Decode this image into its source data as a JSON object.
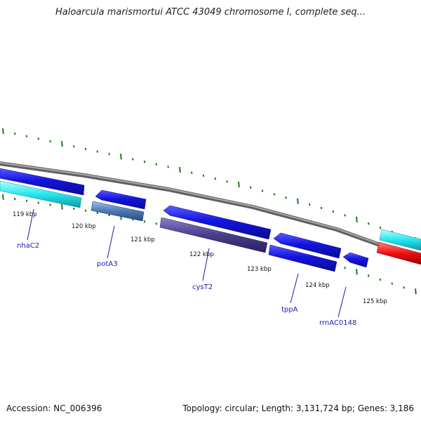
{
  "title": "Haloarcula marismortui ATCC 43049 chromosome I, complete seq...",
  "tick_labels": [
    "119 kbp",
    "120 kbp",
    "121 kbp",
    "122 kbp",
    "123 kbp",
    "124 kbp",
    "125 kbp"
  ],
  "gene_labels": [
    "nhaC2",
    "potA3",
    "cysT2",
    "tppA",
    "rrnAC0148"
  ],
  "colors": {
    "backbone": "#8a8a8a",
    "forward_gene": "#1414e0",
    "reverse_gene_cyan": "#22e8ee",
    "steelblue_gene": "#4a78b4",
    "purple_gene": "#4a3d8c",
    "red_gene": "#ee1010",
    "tick": "#1a7a1a",
    "label": "#1a1ab0"
  },
  "footer": {
    "accession": "Accession: NC_006396",
    "summary": "Topology: circular; Length: 3,131,724 bp; Genes: 3,186"
  }
}
